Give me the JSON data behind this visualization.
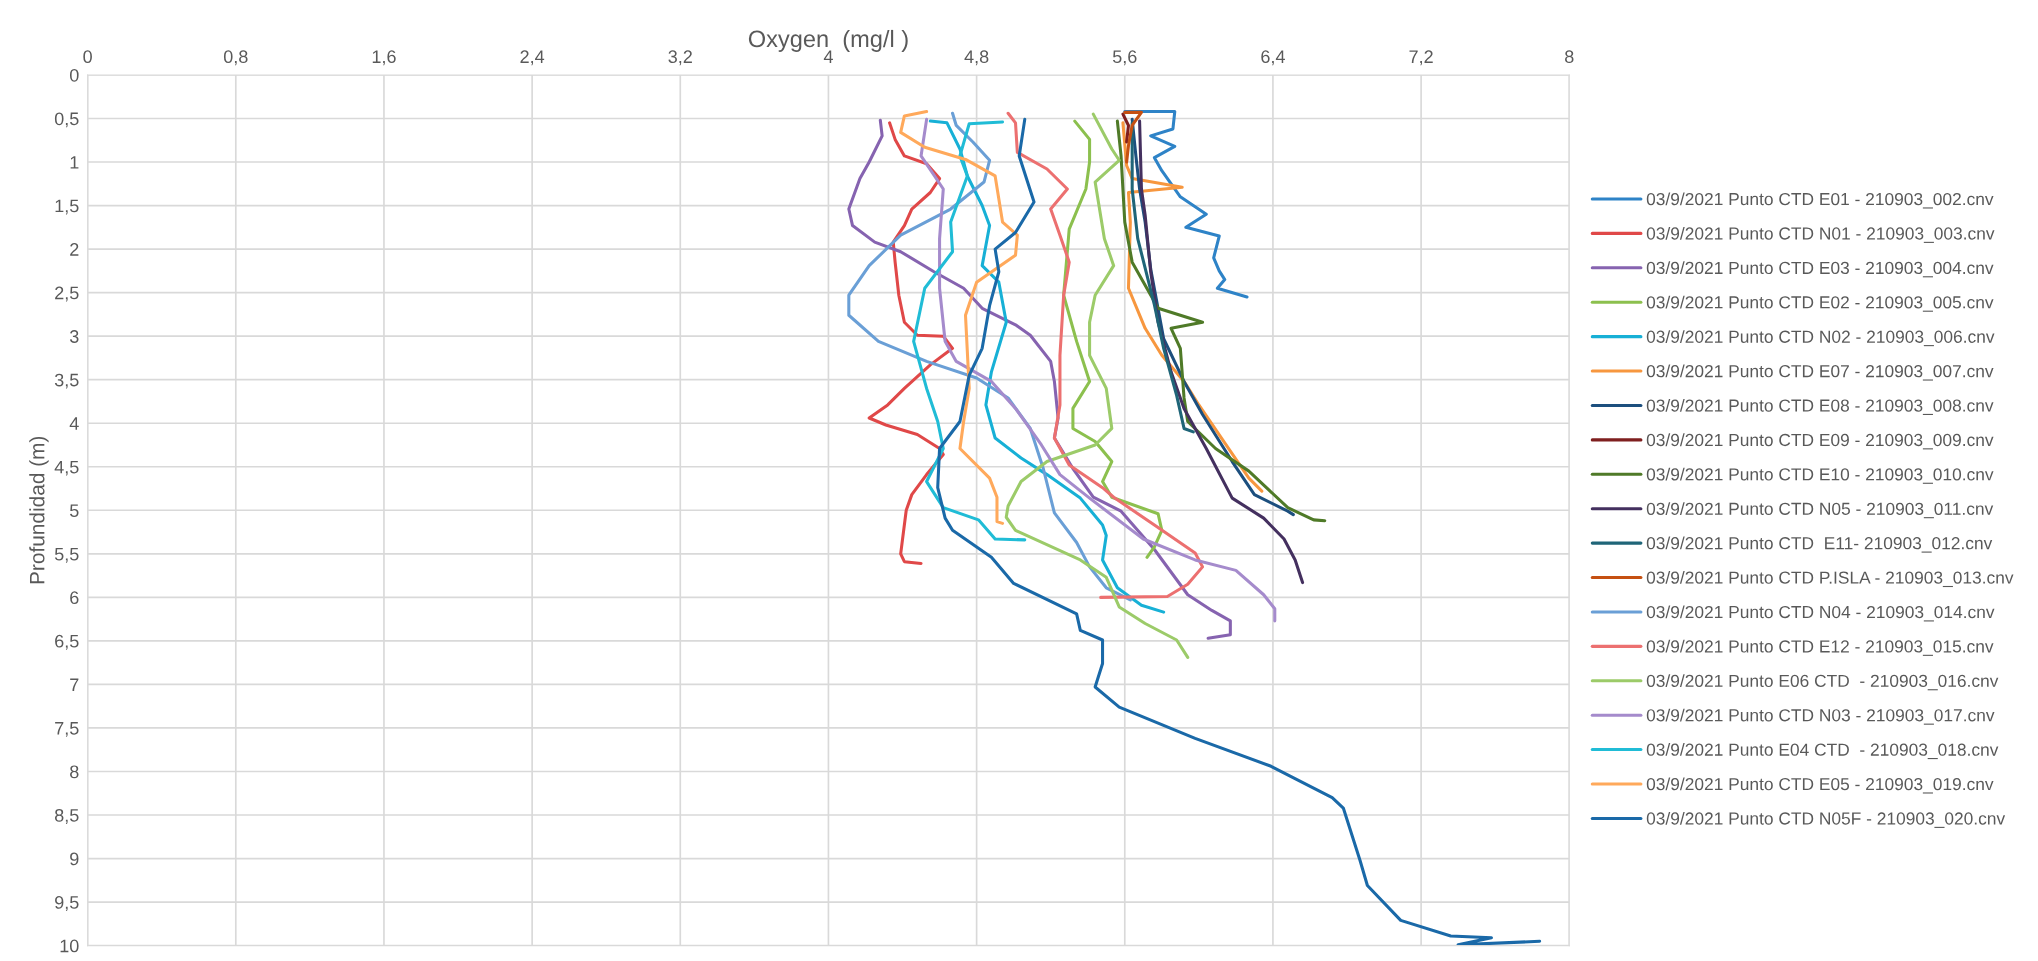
{
  "chart_data": {
    "type": "line",
    "xlabel": "Oxygen  (mg/l )",
    "ylabel": "Profundidad (m)",
    "xlim": [
      0,
      8
    ],
    "xticks": [
      0,
      {
        "value": 0.8,
        "label": "0,8"
      },
      {
        "value": 1.6,
        "label": "1,6"
      },
      {
        "value": 2.4,
        "label": "2,4"
      },
      {
        "value": 3.2,
        "label": "3,2"
      },
      4,
      {
        "value": 4.8,
        "label": "4,8"
      },
      {
        "value": 5.6,
        "label": "5,6"
      },
      {
        "value": 6.4,
        "label": "6,4"
      },
      {
        "value": 7.2,
        "label": "7,2"
      },
      8
    ],
    "ylim": [
      10,
      0
    ],
    "yticks": [
      0,
      {
        "value": 0.5,
        "label": "0,5"
      },
      1,
      {
        "value": 1.5,
        "label": "1,5"
      },
      2,
      {
        "value": 2.5,
        "label": "2,5"
      },
      3,
      {
        "value": 3.5,
        "label": "3,5"
      },
      4,
      {
        "value": 4.5,
        "label": "4,5"
      },
      5,
      {
        "value": 5.5,
        "label": "5,5"
      },
      6,
      {
        "value": 6.5,
        "label": "6,5"
      },
      7,
      {
        "value": 7.5,
        "label": "7,5"
      },
      8,
      {
        "value": 8.5,
        "label": "8,5"
      },
      9,
      {
        "value": 9.5,
        "label": "9,5"
      },
      10
    ],
    "grid": true,
    "legend": "right",
    "marker": "none",
    "line_style": "solid",
    "series": [
      {
        "name": "03/9/2021 Punto CTD E01 - 210903_002.cnv",
        "color": "#2e83c7",
        "x": [
          5.6,
          5.87,
          5.86,
          5.74,
          5.87,
          5.76,
          5.8,
          5.9,
          6.04,
          5.93,
          6.11,
          6.08,
          6.11,
          6.14,
          6.1,
          6.26
        ],
        "values": [
          0.42,
          0.42,
          0.62,
          0.7,
          0.82,
          0.95,
          1.1,
          1.4,
          1.6,
          1.75,
          1.85,
          2.1,
          2.25,
          2.35,
          2.45,
          2.55
        ]
      },
      {
        "name": "03/9/2021 Punto CTD N01 - 210903_003.cnv",
        "color": "#e04848",
        "x": [
          4.33,
          4.36,
          4.41,
          4.53,
          4.6,
          4.55,
          4.45,
          4.41,
          4.35,
          4.36,
          4.38,
          4.41,
          4.48,
          4.62,
          4.67,
          4.55,
          4.41,
          4.32,
          4.22,
          4.31,
          4.48,
          4.6,
          4.62,
          4.53,
          4.45,
          4.42,
          4.39,
          4.41,
          4.5
        ],
        "values": [
          0.55,
          0.74,
          0.93,
          1.02,
          1.19,
          1.35,
          1.54,
          1.73,
          1.92,
          2.15,
          2.53,
          2.84,
          2.99,
          3.0,
          3.14,
          3.33,
          3.6,
          3.79,
          3.94,
          4.02,
          4.13,
          4.29,
          4.36,
          4.59,
          4.82,
          5.0,
          5.5,
          5.59,
          5.61
        ]
      },
      {
        "name": "03/9/2021 Punto CTD E03 - 210903_004.cnv",
        "color": "#8663b0",
        "x": [
          4.28,
          4.29,
          4.22,
          4.17,
          4.11,
          4.13,
          4.25,
          4.39,
          4.57,
          4.73,
          4.83,
          5.01,
          5.09,
          5.2,
          5.22,
          5.24,
          5.22,
          5.32,
          5.43,
          5.58,
          5.76,
          5.94,
          6.07,
          6.17,
          6.17,
          6.05
        ],
        "values": [
          0.52,
          0.7,
          1.0,
          1.19,
          1.54,
          1.73,
          1.92,
          2.03,
          2.26,
          2.45,
          2.68,
          2.87,
          2.99,
          3.29,
          3.52,
          3.94,
          4.17,
          4.52,
          4.85,
          5.01,
          5.45,
          5.97,
          6.15,
          6.27,
          6.43,
          6.47
        ]
      },
      {
        "name": "03/9/2021 Punto CTD E02 - 210903_005.cnv",
        "color": "#8cc04e",
        "x": [
          5.33,
          5.41,
          5.41,
          5.39,
          5.3,
          5.27,
          5.34,
          5.41,
          5.32,
          5.32,
          5.44,
          5.53,
          5.48,
          5.53,
          5.78,
          5.8,
          5.76,
          5.72
        ],
        "values": [
          0.53,
          0.74,
          1.0,
          1.31,
          1.77,
          2.53,
          3.06,
          3.52,
          3.83,
          4.06,
          4.21,
          4.44,
          4.67,
          4.85,
          5.04,
          5.23,
          5.42,
          5.54
        ]
      },
      {
        "name": "03/9/2021 Punto CTD N02 - 210903_006.cnv",
        "color": "#17b0d6",
        "x": [
          4.55,
          4.64,
          4.71,
          4.75,
          4.83,
          4.87,
          4.83,
          4.92,
          4.96,
          4.88,
          4.85,
          4.9,
          5.04,
          5.18,
          5.36,
          5.48,
          5.5,
          5.48,
          5.56,
          5.69,
          5.81
        ],
        "values": [
          0.53,
          0.55,
          0.85,
          1.16,
          1.5,
          1.73,
          2.19,
          2.38,
          2.84,
          3.41,
          3.79,
          4.17,
          4.4,
          4.59,
          4.86,
          5.17,
          5.29,
          5.57,
          5.89,
          6.09,
          6.17
        ]
      },
      {
        "name": "03/9/2021 Punto CTD E07 - 210903_007.cnv",
        "color": "#f7973f",
        "x": [
          5.59,
          5.61,
          5.64,
          5.91,
          5.62,
          5.63,
          5.62,
          5.71,
          5.8,
          5.92,
          6.0,
          6.16,
          6.27,
          6.34
        ],
        "values": [
          0.55,
          1.04,
          1.19,
          1.29,
          1.35,
          1.69,
          2.45,
          2.91,
          3.22,
          3.52,
          3.79,
          4.29,
          4.63,
          4.78
        ]
      },
      {
        "name": "03/9/2021 Punto CTD E08 - 210903_008.cnv",
        "color": "#1c4f7e",
        "x": [
          5.64,
          5.66,
          5.68,
          5.71,
          5.74,
          5.81,
          5.92,
          6.02,
          6.18,
          6.3,
          6.48,
          6.51
        ],
        "values": [
          0.51,
          0.93,
          1.31,
          1.69,
          2.23,
          3.03,
          3.52,
          3.9,
          4.44,
          4.82,
          5.01,
          5.05
        ]
      },
      {
        "name": "03/9/2021 Punto CTD E09 - 210903_009.cnv",
        "color": "#7f1f1f",
        "x": [
          5.59,
          5.62,
          5.61
        ],
        "values": [
          0.45,
          0.58,
          0.77
        ]
      },
      {
        "name": "03/9/2021 Punto CTD E10 - 210903_010.cnv",
        "color": "#4f7a28",
        "x": [
          5.56,
          5.58,
          5.6,
          5.64,
          5.78,
          6.02,
          5.85,
          5.9,
          5.92,
          5.94,
          6.09,
          6.27,
          6.48,
          6.62,
          6.68
        ],
        "values": [
          0.53,
          0.93,
          1.69,
          2.15,
          2.68,
          2.84,
          2.91,
          3.14,
          3.71,
          3.98,
          4.29,
          4.55,
          4.97,
          5.11,
          5.12
        ]
      },
      {
        "name": "03/9/2021 Punto CTD N05 - 210903_011.cnv",
        "color": "#44305f",
        "x": [
          5.68,
          5.69,
          5.71,
          5.74,
          5.78,
          5.85,
          5.92,
          6.04,
          6.18,
          6.35,
          6.46,
          6.52,
          6.56
        ],
        "values": [
          0.53,
          1.31,
          1.61,
          2.26,
          2.84,
          3.41,
          3.83,
          4.29,
          4.86,
          5.09,
          5.33,
          5.57,
          5.83
        ]
      },
      {
        "name": "03/9/2021 Punto CTD  E11- 210903_012.cnv",
        "color": "#1f6578",
        "x": [
          5.64,
          5.64,
          5.67,
          5.76,
          5.81,
          5.88,
          5.92,
          5.97
        ],
        "values": [
          0.55,
          1.31,
          1.88,
          2.64,
          3.14,
          3.68,
          4.06,
          4.1
        ]
      },
      {
        "name": "03/9/2021 Punto CTD P.ISLA - 210903_013.cnv",
        "color": "#c55012",
        "x": [
          5.6,
          5.69,
          5.64,
          5.62,
          5.61
        ],
        "values": [
          0.43,
          0.43,
          0.58,
          0.81,
          1.0
        ]
      },
      {
        "name": "03/9/2021 Punto CTD N04 - 210903_014.cnv",
        "color": "#6a9fd6",
        "x": [
          4.67,
          4.69,
          4.78,
          4.87,
          4.84,
          4.66,
          4.39,
          4.22,
          4.11,
          4.11,
          4.27,
          4.53,
          4.8,
          4.97,
          5.09,
          5.16,
          5.22,
          5.34,
          5.41,
          5.5,
          5.63
        ],
        "values": [
          0.44,
          0.58,
          0.77,
          0.98,
          1.23,
          1.54,
          1.84,
          2.19,
          2.53,
          2.76,
          3.06,
          3.29,
          3.48,
          3.71,
          4.06,
          4.52,
          5.03,
          5.37,
          5.65,
          5.89,
          6.03
        ]
      },
      {
        "name": "03/9/2021 Punto CTD E12 - 210903_015.cnv",
        "color": "#ec7070",
        "x": [
          4.97,
          5.01,
          5.02,
          5.18,
          5.29,
          5.2,
          5.25,
          5.3,
          5.27,
          5.25,
          5.25,
          5.22,
          5.3,
          5.48,
          5.54,
          5.76,
          5.98,
          6.02,
          5.94,
          5.83,
          5.47
        ],
        "values": [
          0.44,
          0.55,
          0.89,
          1.08,
          1.31,
          1.54,
          1.84,
          2.15,
          2.53,
          3.22,
          3.79,
          4.17,
          4.48,
          4.74,
          4.85,
          5.17,
          5.49,
          5.65,
          5.85,
          5.99,
          6.0
        ]
      },
      {
        "name": "03/9/2021 Punto E06 CTD  - 210903_016.cnv",
        "color": "#9ccb69",
        "x": [
          5.43,
          5.53,
          5.57,
          5.44,
          5.49,
          5.54,
          5.44,
          5.41,
          5.41,
          5.5,
          5.53,
          5.44,
          5.18,
          5.04,
          4.97,
          4.96,
          5.01,
          5.36,
          5.5,
          5.57,
          5.71,
          5.88,
          5.94
        ],
        "values": [
          0.45,
          0.85,
          0.98,
          1.23,
          1.88,
          2.19,
          2.53,
          2.84,
          3.22,
          3.6,
          4.06,
          4.25,
          4.44,
          4.67,
          4.95,
          5.08,
          5.23,
          5.57,
          5.77,
          6.11,
          6.3,
          6.49,
          6.69
        ]
      },
      {
        "name": "03/9/2021 Punto CTD N03 - 210903_017.cnv",
        "color": "#a58bcc",
        "x": [
          4.53,
          4.5,
          4.62,
          4.6,
          4.6,
          4.63,
          4.69,
          4.88,
          5.01,
          5.15,
          5.25,
          5.41,
          5.7,
          5.98,
          6.2,
          6.35,
          6.41,
          6.41
        ],
        "values": [
          0.51,
          0.93,
          1.31,
          1.88,
          2.45,
          3.06,
          3.29,
          3.52,
          3.83,
          4.25,
          4.59,
          4.86,
          5.33,
          5.57,
          5.69,
          5.97,
          6.13,
          6.27
        ]
      },
      {
        "name": "03/9/2021 Punto E04 CTD  - 210903_018.cnv",
        "color": "#20bcd6",
        "x": [
          4.94,
          4.76,
          4.71,
          4.75,
          4.66,
          4.67,
          4.52,
          4.46,
          4.53,
          4.59,
          4.62,
          4.53,
          4.62,
          4.81,
          4.9,
          5.06
        ],
        "values": [
          0.54,
          0.56,
          0.93,
          1.16,
          1.69,
          2.03,
          2.45,
          3.06,
          3.6,
          3.98,
          4.29,
          4.67,
          4.97,
          5.11,
          5.33,
          5.34
        ]
      },
      {
        "name": "03/9/2021 Punto CTD E05 - 210903_019.cnv",
        "color": "#ffa95b",
        "x": [
          4.53,
          4.41,
          4.39,
          4.52,
          4.74,
          4.9,
          4.94,
          5.02,
          5.01,
          4.8,
          4.74,
          4.76,
          4.73,
          4.71,
          4.87,
          4.91,
          4.91,
          4.94
        ],
        "values": [
          0.42,
          0.47,
          0.66,
          0.83,
          0.97,
          1.16,
          1.69,
          1.84,
          2.07,
          2.38,
          2.76,
          3.6,
          3.98,
          4.29,
          4.63,
          4.85,
          5.13,
          5.15
        ]
      },
      {
        "name": "03/9/2021 Punto CTD N05F - 210903_020.cnv",
        "color": "#1a69a8",
        "x": [
          5.06,
          5.03,
          5.11,
          5.01,
          4.9,
          4.92,
          4.87,
          4.83,
          4.76,
          4.71,
          4.6,
          4.59,
          4.63,
          4.67,
          4.88,
          5.0,
          5.34,
          5.36,
          5.48,
          5.48,
          5.44,
          5.57,
          5.98,
          6.39,
          6.72,
          6.78,
          6.87,
          6.91,
          7.09,
          7.36,
          7.58,
          7.4,
          7.84
        ],
        "values": [
          0.51,
          0.93,
          1.46,
          1.81,
          2.0,
          2.26,
          2.65,
          3.14,
          3.45,
          3.98,
          4.29,
          4.74,
          5.09,
          5.23,
          5.54,
          5.84,
          6.19,
          6.38,
          6.49,
          6.76,
          7.03,
          7.26,
          7.62,
          7.94,
          8.3,
          8.42,
          9.02,
          9.31,
          9.71,
          9.89,
          9.91,
          9.99,
          9.95
        ]
      }
    ]
  }
}
